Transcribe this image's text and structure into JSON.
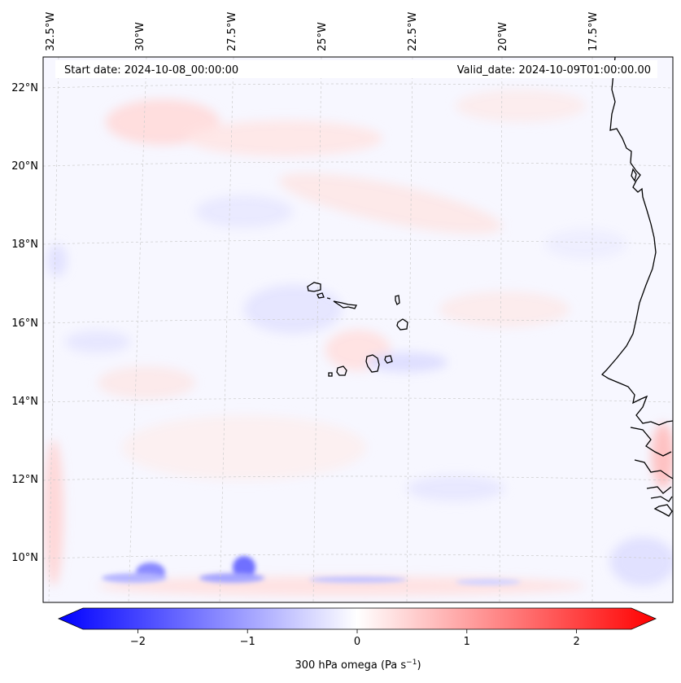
{
  "header": {
    "start_date": "Start date: 2024-10-08_00:00:00",
    "valid_date": "Valid_date: 2024-10-09T01:00:00.00"
  },
  "longitude_labels": [
    "32.5°W",
    "30°W",
    "27.5°W",
    "25°W",
    "22.5°W",
    "20°W",
    "17.5°W"
  ],
  "latitude_labels": [
    "22°N",
    "20°N",
    "18°N",
    "16°N",
    "14°N",
    "12°N",
    "10°N"
  ],
  "colorbar": {
    "label": "300 hPa omega (Pa s",
    "label_sup": "−1",
    "label_end": ")",
    "ticks": [
      "−2",
      "−1",
      "0",
      "1",
      "2"
    ],
    "tick_values": [
      -2,
      -1,
      0,
      1,
      2
    ],
    "vmin": -2.5,
    "vmax": 2.5,
    "color_min": "#0000ff",
    "color_mid": "#ffffff",
    "color_max": "#ff0000"
  },
  "colors": {
    "background_field": "#f7f7ff",
    "coastline": "#000000",
    "gridline": "#cccccc"
  }
}
